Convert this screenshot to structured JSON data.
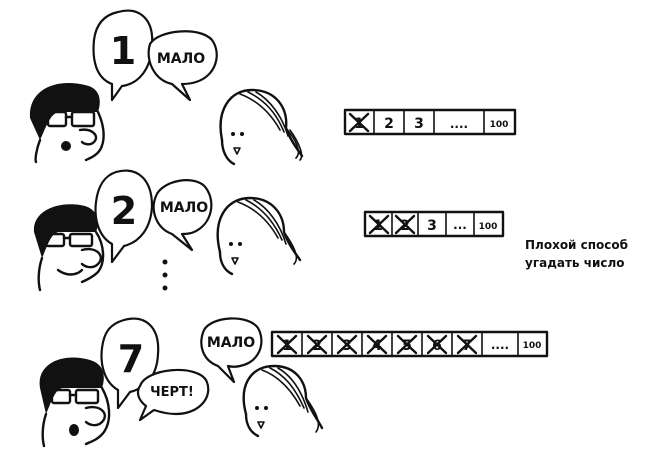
{
  "caption": {
    "line1": "Плохой способ",
    "line2": "угадать число"
  },
  "scene1": {
    "guess": "1",
    "reply": "МАЛО",
    "boxes": [
      "1",
      "2",
      "3",
      "....",
      "100"
    ]
  },
  "scene2": {
    "guess": "2",
    "reply": "МАЛО",
    "boxes": [
      "1",
      "2",
      "3",
      "...",
      "100"
    ]
  },
  "scene3": {
    "guess": "7",
    "reply": "МАЛО",
    "exclaim": "ЧЕРТ!",
    "boxes": [
      "1",
      "2",
      "3",
      "4",
      "5",
      "6",
      "7",
      "....",
      "100"
    ]
  }
}
